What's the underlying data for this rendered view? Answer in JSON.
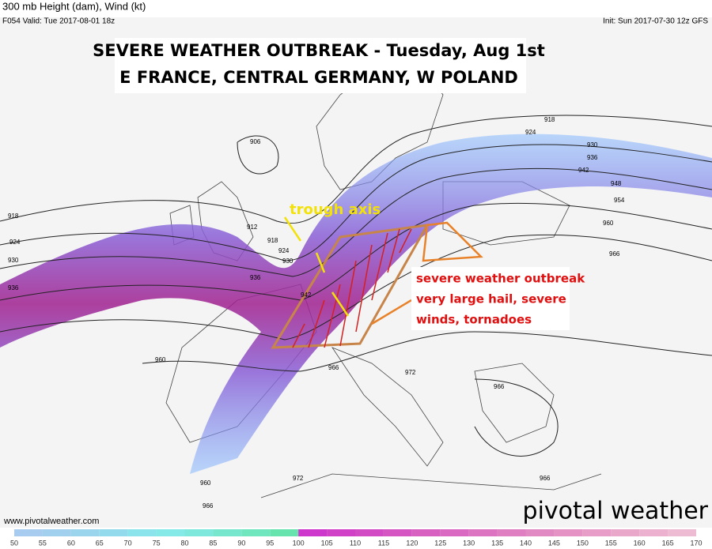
{
  "header": {
    "title": "300 mb Height (dam), Wind (kt)",
    "valid": "F054 Valid: Tue 2017-08-01 18z",
    "init": "Init: Sun 2017-07-30 12z GFS"
  },
  "annotations": {
    "headline_1": "SEVERE WEATHER OUTBREAK - Tuesday, Aug 1st",
    "headline_2": "E FRANCE, CENTRAL GERMANY, W POLAND",
    "trough": "trough axis",
    "severe": [
      "severe weather outbreak",
      "very large hail, severe",
      "winds, tornadoes"
    ]
  },
  "contour_labels": [
    906,
    912,
    918,
    924,
    930,
    936,
    918,
    924,
    930,
    936,
    942,
    948,
    954,
    960,
    966,
    918,
    924,
    930,
    936,
    942,
    960,
    966,
    972,
    966,
    966,
    960,
    972,
    966
  ],
  "footer": {
    "url": "www.pivotalweather.com",
    "logo": "pivotal weather"
  },
  "colorbar": [
    50,
    55,
    60,
    65,
    70,
    75,
    80,
    85,
    90,
    95,
    100,
    105,
    110,
    115,
    120,
    125,
    130,
    135,
    140,
    145,
    150,
    155,
    160,
    165,
    170
  ]
}
